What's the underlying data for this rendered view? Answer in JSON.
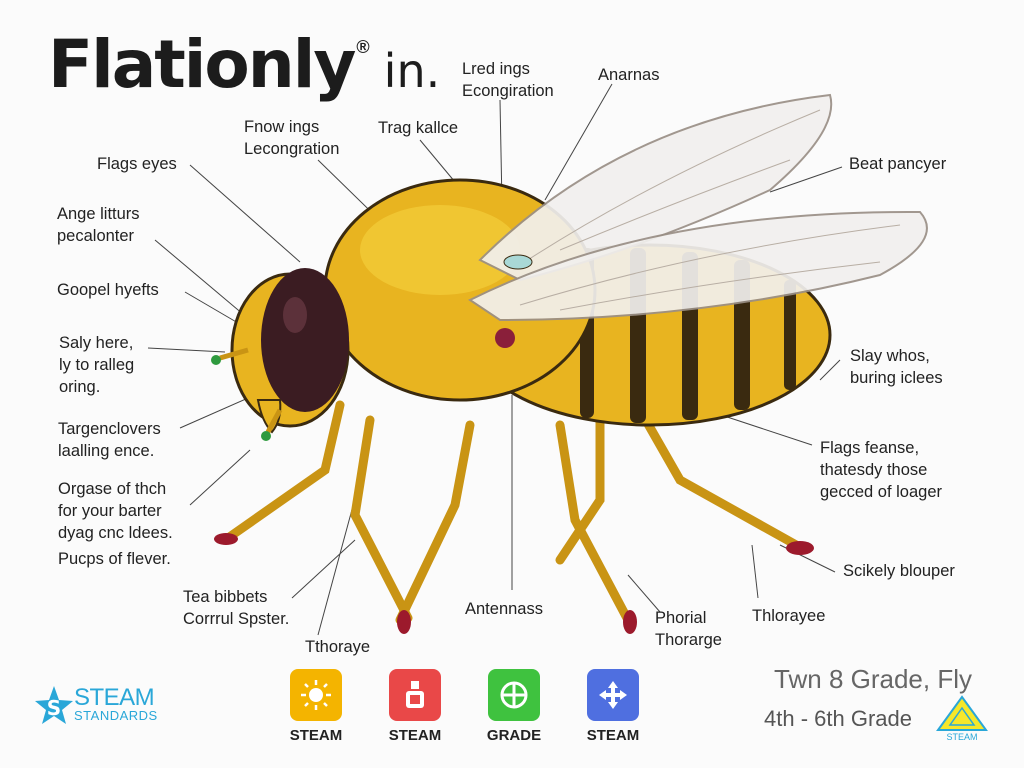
{
  "header": {
    "title": "Flationly",
    "reg_mark": "®",
    "title_suffix": "in."
  },
  "labels": {
    "lred_ings": "Lred ings\nEcongiration",
    "anarnas": "Anarnas",
    "fnow_ings": "Fnow ings\nLecongration",
    "trag_kallce": "Trag kallce",
    "flags_eyes": "Flags eyes",
    "beat_pancyer": "Beat pancyer",
    "ange_litturs": "Ange litturs\npecalonter",
    "goopel": "Goopel hyefts",
    "saly_here": "Saly here,\nly to ralleg\noring.",
    "slay_whos": "Slay whos,\nburing iclees",
    "targenclovers": "Targenclovers\nlaalling ence.",
    "flags_feanse": "Flags feanse,\nthatesdy those\ngecced of loager",
    "orgase": "Orgase of thch\nfor your barter\ndyag cnc ldees.",
    "pucps": "Pucps of flever.",
    "scikely": "Scikely blouper",
    "tea_bibbets": "Tea bibbets\nCorrrul Spster.",
    "antennass": "Antennass",
    "phorial": "Phorial\nThorarge",
    "thlorayee": "Thlorayee",
    "tthoraye": "Tthoraye"
  },
  "footer": {
    "logo_line1": "STEAM",
    "logo_line2": "STANDARDS",
    "badges": [
      {
        "label": "STEAM",
        "color": "#f4b400",
        "icon": "sun-icon"
      },
      {
        "label": "STEAM",
        "color": "#e94848",
        "icon": "flask-icon"
      },
      {
        "label": "GRADE",
        "color": "#3fc23f",
        "icon": "gear-icon"
      },
      {
        "label": "STEAM",
        "color": "#4f6fe0",
        "icon": "arrows-icon"
      }
    ],
    "grade_line1": "Twn 8 Grade, Fly",
    "grade_line2": "4th - 6th Grade",
    "tri_label": "STEAM"
  },
  "colors": {
    "body_yellow": "#e8b420",
    "stripe": "#3a2a10",
    "eye": "#3b1c22",
    "leg": "#d9a520",
    "wing": "#f2f0ee"
  }
}
